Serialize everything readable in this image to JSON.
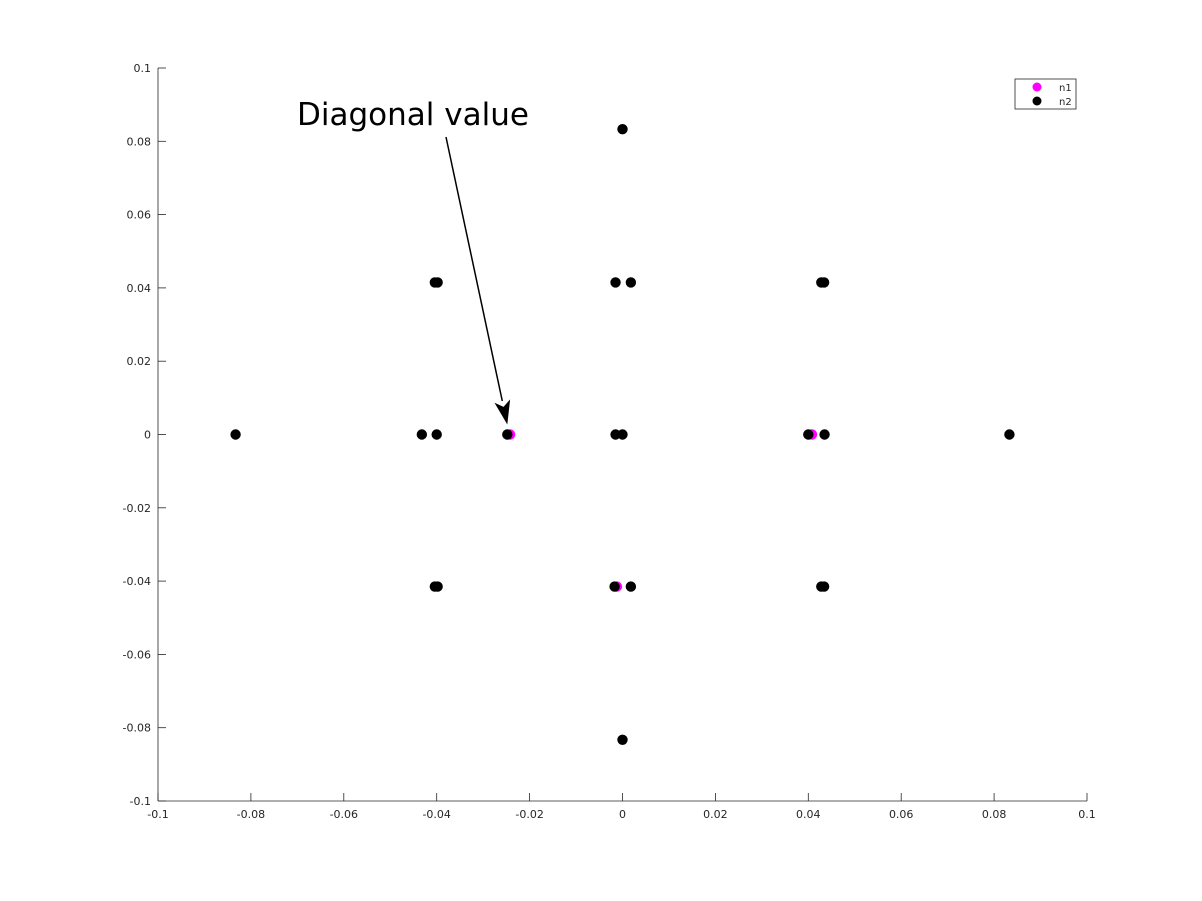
{
  "chart_data": {
    "type": "scatter",
    "title": "",
    "xlabel": "",
    "ylabel": "",
    "xlim": [
      -0.1,
      0.1
    ],
    "ylim": [
      -0.1,
      0.1
    ],
    "x_ticks": [
      -0.1,
      -0.08,
      -0.06,
      -0.04,
      -0.02,
      0,
      0.02,
      0.04,
      0.06,
      0.08,
      0.1
    ],
    "x_tick_labels": [
      "-0.1",
      "-0.08",
      "-0.06",
      "-0.04",
      "-0.02",
      "0",
      "0.02",
      "0.04",
      "0.06",
      "0.08",
      "0.1"
    ],
    "y_ticks": [
      0.1,
      0.08,
      0.06,
      0.04,
      0.02,
      0,
      -0.02,
      -0.04,
      -0.06,
      -0.08,
      -0.1
    ],
    "y_tick_labels": [
      "0.1",
      "0.08",
      "0.06",
      "0.04",
      "0.02",
      "0",
      "-0.02",
      "-0.04",
      "-0.06",
      "-0.08",
      "-0.1"
    ],
    "grid": false,
    "legend_position": "top-right",
    "series": [
      {
        "name": "n1",
        "color": "#ff00ff",
        "points": [
          [
            -0.0242,
            0
          ],
          [
            -0.0012,
            -0.0415
          ],
          [
            0.0408,
            0
          ]
        ]
      },
      {
        "name": "n2",
        "color": "#000000",
        "points": [
          [
            0,
            0.0833
          ],
          [
            -0.0404,
            0.0415
          ],
          [
            -0.0398,
            0.0415
          ],
          [
            -0.0015,
            0.0415
          ],
          [
            0.0018,
            0.0415
          ],
          [
            0.0428,
            0.0415
          ],
          [
            0.0434,
            0.0415
          ],
          [
            -0.0833,
            0
          ],
          [
            -0.0432,
            0
          ],
          [
            -0.04,
            0
          ],
          [
            -0.0248,
            0
          ],
          [
            -0.0015,
            0
          ],
          [
            0,
            0
          ],
          [
            0.04,
            0
          ],
          [
            0.0435,
            0
          ],
          [
            0.0833,
            0
          ],
          [
            -0.0404,
            -0.0415
          ],
          [
            -0.0398,
            -0.0415
          ],
          [
            -0.0017,
            -0.0415
          ],
          [
            0.0018,
            -0.0415
          ],
          [
            0.0428,
            -0.0415
          ],
          [
            0.0434,
            -0.0415
          ],
          [
            0,
            -0.0833
          ]
        ]
      }
    ],
    "annotation": {
      "text": "Diagonal value",
      "target": [
        -0.0248,
        0
      ]
    }
  }
}
